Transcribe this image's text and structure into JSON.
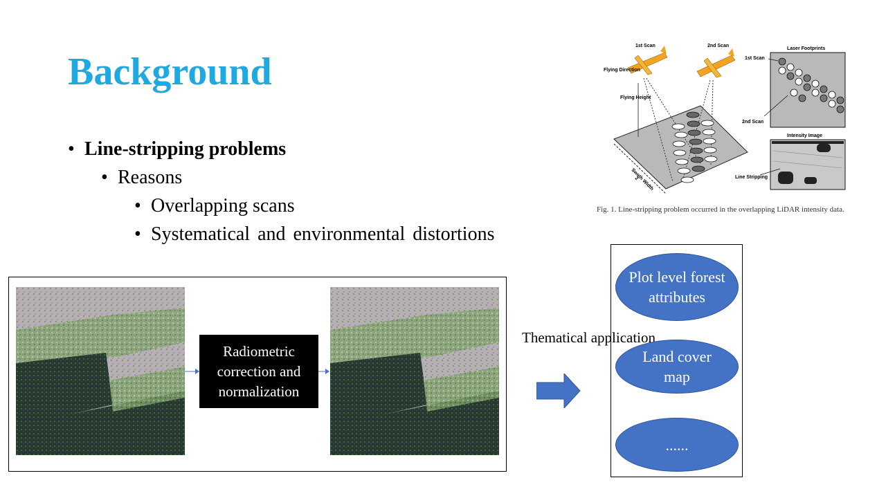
{
  "slide": {
    "title": "Background",
    "bullets": [
      {
        "text": "Line-stripping problems",
        "level": 1
      },
      {
        "text": "Reasons",
        "level": 2
      },
      {
        "text": "Overlapping scans",
        "level": 3
      },
      {
        "text": "Systematical and environmental  distortions",
        "level": 3
      }
    ]
  },
  "figure": {
    "labels": {
      "scan1": "1st Scan",
      "scan2": "2nd Scan",
      "flying_direction": "Flying Direction",
      "flying_height": "Flying Height",
      "swath_width": "Swath Width",
      "swath_half": "2",
      "laser_footprints": "Laser Footprints",
      "fp_scan1": "1st Scan",
      "fp_scan2": "2nd Scan",
      "intensity_image": "Intensity Image",
      "line_stripping": "Line Stripping"
    },
    "caption": "Fig. 1.   Line-stripping problem occurred in the overlapping LiDAR intensity data."
  },
  "process": {
    "box_label": "Radiometric correction and normalization",
    "thematic_label": "Thematical application"
  },
  "outputs": {
    "items": [
      "Plot level forest attributes",
      "Land cover map",
      "......"
    ]
  },
  "colors": {
    "title": "#1fa9e1",
    "oval_fill": "#4472c4",
    "arrow": "#4472c4"
  }
}
